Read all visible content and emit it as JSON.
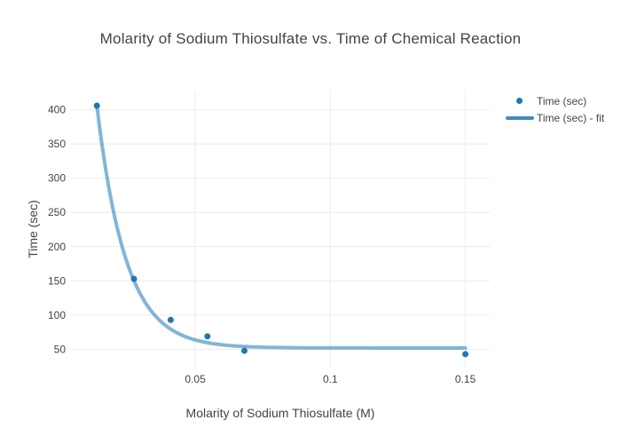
{
  "chart_data": {
    "type": "scatter",
    "title": "Molarity of Sodium Thiosulfate vs. Time of Chemical Reaction",
    "xlabel": "Molarity of Sodium Thiosulfate (M)",
    "ylabel": "Time (sec)",
    "xlim": [
      0.004,
      0.159
    ],
    "ylim": [
      22,
      428
    ],
    "xticks": [
      0.05,
      0.1,
      0.15
    ],
    "xtick_labels": [
      "0.05",
      "0.1",
      "0.15"
    ],
    "yticks": [
      50,
      100,
      150,
      200,
      250,
      300,
      350,
      400
    ],
    "grid": true,
    "legend_position": "top-right",
    "series": [
      {
        "name": "Time (sec)",
        "type": "scatter",
        "marker": "dot",
        "marker_color": "#1f77b4",
        "marker_size": 7,
        "x": [
          0.0136,
          0.0273,
          0.0409,
          0.0545,
          0.0682,
          0.15
        ],
        "y": [
          406,
          153,
          93,
          69,
          48,
          43
        ]
      },
      {
        "name": "Time (sec) - fit",
        "type": "line",
        "line_color": "#1f77b4",
        "line_opacity": 0.55,
        "line_width": 4,
        "fit": {
          "model": "exponential_decay",
          "baseline": 52,
          "amplitude": 354,
          "tau": 0.0107,
          "x_start": 0.0136,
          "x_end": 0.15
        }
      }
    ]
  },
  "colors": {
    "accent": "#1f77b4",
    "grid": "#ececec",
    "text": "#444444",
    "background": "#ffffff"
  }
}
